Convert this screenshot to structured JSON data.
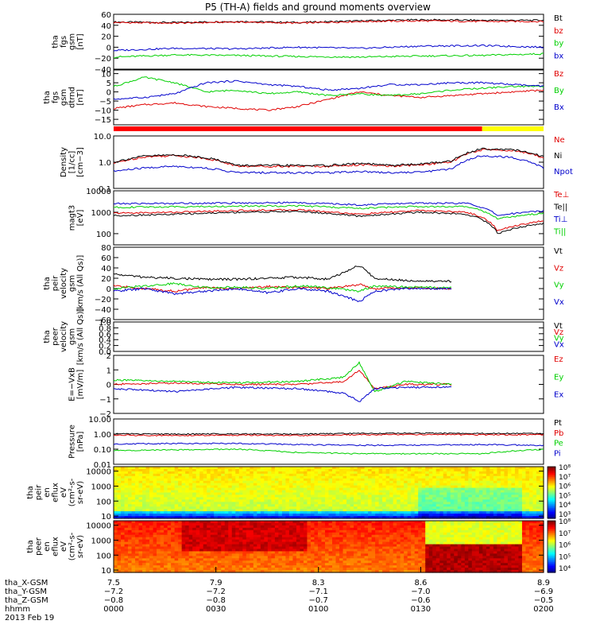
{
  "title": "P5 (TH-A) fields and ground moments overview",
  "colors": {
    "black": "#000000",
    "red": "#e00000",
    "green": "#00d000",
    "blue": "#0000cc",
    "bar_red": "#ff0000",
    "bar_yellow": "#ffff00"
  },
  "chart_data": [
    {
      "type": "line",
      "ylabel": [
        "tha",
        "fgs",
        "gsm",
        "[nT]"
      ],
      "ylim": [
        -40,
        60
      ],
      "scale": "linear",
      "yticks": [
        "60",
        "40",
        "20",
        "0",
        "−20",
        "−40"
      ],
      "legend": [
        {
          "label": "Bt",
          "color": "#000000"
        },
        {
          "label": "bz",
          "color": "#e00000"
        },
        {
          "label": "by",
          "color": "#00d000"
        },
        {
          "label": "bx",
          "color": "#0000cc"
        }
      ],
      "series": [
        {
          "name": "Bt",
          "color": "#000000",
          "x": [
            7.5,
            7.7,
            7.9,
            8.1,
            8.3,
            8.5,
            8.7,
            8.9
          ],
          "y": [
            46,
            45,
            47,
            45,
            48,
            50,
            49,
            49
          ]
        },
        {
          "name": "bz",
          "color": "#e00000",
          "x": [
            7.5,
            7.7,
            7.9,
            8.1,
            8.3,
            8.5,
            8.7,
            8.9
          ],
          "y": [
            45,
            44,
            46,
            44,
            47,
            48,
            47,
            47
          ]
        },
        {
          "name": "by",
          "color": "#00d000",
          "x": [
            7.5,
            7.7,
            7.9,
            8.1,
            8.3,
            8.5,
            8.7,
            8.9
          ],
          "y": [
            -18,
            -14,
            -15,
            -17,
            -18,
            -16,
            -15,
            -12
          ]
        },
        {
          "name": "bx",
          "color": "#0000cc",
          "x": [
            7.5,
            7.7,
            7.9,
            8.1,
            8.3,
            8.5,
            8.7,
            8.9
          ],
          "y": [
            -6,
            -2,
            -3,
            0,
            -2,
            2,
            3,
            0
          ]
        }
      ]
    },
    {
      "type": "line",
      "ylabel": [
        "tha",
        "fgs",
        "gsm",
        "dtrnd",
        "[nT]"
      ],
      "ylim": [
        -18,
        12
      ],
      "scale": "linear",
      "yticks": [
        "10",
        "5",
        "0",
        "−5",
        "−10",
        "−15"
      ],
      "legend": [
        {
          "label": "Bz",
          "color": "#e00000"
        },
        {
          "label": "By",
          "color": "#00d000"
        },
        {
          "label": "Bx",
          "color": "#0000cc"
        }
      ],
      "series": [
        {
          "name": "Bz",
          "color": "#e00000",
          "x": [
            7.5,
            7.6,
            7.7,
            7.8,
            7.9,
            8.0,
            8.1,
            8.2,
            8.3,
            8.4,
            8.5,
            8.6,
            8.7,
            8.8,
            8.9
          ],
          "y": [
            -9,
            -7,
            -6,
            -8,
            -9,
            -10,
            -8,
            -4,
            0,
            -2,
            -3,
            -2,
            -1,
            0,
            1
          ]
        },
        {
          "name": "By",
          "color": "#00d000",
          "x": [
            7.5,
            7.6,
            7.7,
            7.8,
            7.9,
            8.0,
            8.1,
            8.2,
            8.3,
            8.4,
            8.5,
            8.6,
            8.7,
            8.8,
            8.9
          ],
          "y": [
            3,
            8,
            5,
            0,
            1,
            -1,
            0,
            -2,
            -1,
            -2,
            -1,
            1,
            2,
            3,
            3
          ]
        },
        {
          "name": "Bx",
          "color": "#0000cc",
          "x": [
            7.5,
            7.6,
            7.7,
            7.8,
            7.9,
            8.0,
            8.1,
            8.2,
            8.3,
            8.4,
            8.5,
            8.6,
            8.7,
            8.8,
            8.9
          ],
          "y": [
            -4,
            -3,
            -1,
            5,
            6,
            4,
            3,
            1,
            2,
            4,
            4,
            5,
            5,
            4,
            3
          ]
        }
      ]
    },
    {
      "type": "line",
      "ylabel": [
        "Density",
        "[1/cc]",
        "[cm−3]"
      ],
      "ylim": [
        0.1,
        10
      ],
      "scale": "log",
      "yticks": [
        "10.0",
        "1.0",
        "0.1"
      ],
      "legend": [
        {
          "label": "Ne",
          "color": "#e00000"
        },
        {
          "label": "Ni",
          "color": "#000000"
        },
        {
          "label": "Npot",
          "color": "#0000cc"
        }
      ],
      "series": [
        {
          "name": "Ne",
          "color": "#e00000",
          "x": [
            7.5,
            7.6,
            7.7,
            7.8,
            7.9,
            8.0,
            8.1,
            8.2,
            8.3,
            8.4,
            8.5,
            8.6,
            8.7,
            8.8,
            8.9
          ],
          "y": [
            0.9,
            1.6,
            1.8,
            1.4,
            0.7,
            0.7,
            0.7,
            0.7,
            0.8,
            0.7,
            0.8,
            1.0,
            3.0,
            2.8,
            1.5
          ]
        },
        {
          "name": "Ni",
          "color": "#000000",
          "x": [
            7.5,
            7.6,
            7.7,
            7.8,
            7.9,
            8.0,
            8.1,
            8.2,
            8.3,
            8.4,
            8.5,
            8.6,
            8.7,
            8.8,
            8.9
          ],
          "y": [
            1.0,
            1.7,
            1.9,
            1.5,
            0.75,
            0.75,
            0.75,
            0.75,
            0.9,
            0.75,
            0.85,
            1.1,
            3.3,
            3.0,
            1.6
          ]
        },
        {
          "name": "Npot",
          "color": "#0000cc",
          "x": [
            7.5,
            7.6,
            7.7,
            7.8,
            7.9,
            8.0,
            8.1,
            8.2,
            8.3,
            8.4,
            8.5,
            8.6,
            8.7,
            8.8,
            8.9
          ],
          "y": [
            0.45,
            0.6,
            0.7,
            0.6,
            0.4,
            0.4,
            0.4,
            0.4,
            0.45,
            0.4,
            0.42,
            0.55,
            1.8,
            1.5,
            0.6
          ]
        }
      ]
    },
    {
      "type": "line",
      "ylabel": [
        "magt3",
        "[eV]"
      ],
      "ylim": [
        30,
        10000
      ],
      "scale": "log",
      "yticks": [
        "10000",
        "1000",
        "100"
      ],
      "legend": [
        {
          "label": "Te⊥",
          "color": "#e00000"
        },
        {
          "label": "Te||",
          "color": "#000000"
        },
        {
          "label": "Ti⊥",
          "color": "#0000cc"
        },
        {
          "label": "Ti||",
          "color": "#00d000"
        }
      ],
      "series": [
        {
          "name": "Te⊥",
          "color": "#e00000",
          "x": [
            7.5,
            7.7,
            7.9,
            8.1,
            8.3,
            8.5,
            8.65,
            8.75,
            8.9
          ],
          "y": [
            900,
            1000,
            1200,
            1300,
            800,
            1200,
            1000,
            130,
            400
          ]
        },
        {
          "name": "Te||",
          "color": "#000000",
          "x": [
            7.5,
            7.7,
            7.9,
            8.1,
            8.3,
            8.5,
            8.65,
            8.75,
            8.9
          ],
          "y": [
            700,
            800,
            1000,
            1100,
            650,
            1000,
            800,
            100,
            300
          ]
        },
        {
          "name": "Ti⊥",
          "color": "#0000cc",
          "x": [
            7.5,
            7.7,
            7.9,
            8.1,
            8.3,
            8.5,
            8.65,
            8.75,
            8.9
          ],
          "y": [
            2500,
            2600,
            2700,
            2800,
            2200,
            2700,
            2600,
            700,
            1200
          ]
        },
        {
          "name": "Ti||",
          "color": "#00d000",
          "x": [
            7.5,
            7.7,
            7.9,
            8.1,
            8.3,
            8.5,
            8.65,
            8.75,
            8.9
          ],
          "y": [
            1700,
            1800,
            1900,
            2000,
            1500,
            1900,
            1800,
            500,
            900
          ]
        }
      ]
    },
    {
      "type": "line",
      "ylabel": [
        "tha",
        "peir",
        "velocity",
        "gsm",
        "[km/s (All Qs)]"
      ],
      "ylim": [
        -60,
        80
      ],
      "scale": "linear",
      "yticks": [
        "80",
        "60",
        "40",
        "20",
        "0",
        "−20",
        "−40",
        "−60"
      ],
      "legend": [
        {
          "label": "Vt",
          "color": "#000000"
        },
        {
          "label": "Vz",
          "color": "#e00000"
        },
        {
          "label": "Vy",
          "color": "#00d000"
        },
        {
          "label": "Vx",
          "color": "#0000cc"
        }
      ],
      "series": [
        {
          "name": "Vt",
          "color": "#000000",
          "x": [
            7.5,
            7.6,
            7.7,
            7.8,
            7.9,
            8.0,
            8.1,
            8.2,
            8.3,
            8.35,
            8.45,
            8.6
          ],
          "y": [
            28,
            22,
            20,
            18,
            18,
            20,
            22,
            18,
            45,
            20,
            16,
            14
          ]
        },
        {
          "name": "Vz",
          "color": "#e00000",
          "x": [
            7.5,
            7.6,
            7.7,
            7.8,
            7.9,
            8.0,
            8.1,
            8.2,
            8.3,
            8.35,
            8.45,
            8.6
          ],
          "y": [
            5,
            0,
            -5,
            2,
            0,
            4,
            2,
            0,
            8,
            0,
            2,
            0
          ]
        },
        {
          "name": "Vy",
          "color": "#00d000",
          "x": [
            7.5,
            7.6,
            7.7,
            7.8,
            7.9,
            8.0,
            8.1,
            8.2,
            8.3,
            8.35,
            8.45,
            8.6
          ],
          "y": [
            0,
            5,
            10,
            2,
            3,
            0,
            5,
            2,
            -5,
            5,
            3,
            2
          ]
        },
        {
          "name": "Vx",
          "color": "#0000cc",
          "x": [
            7.5,
            7.6,
            7.7,
            7.8,
            7.9,
            8.0,
            8.1,
            8.2,
            8.3,
            8.35,
            8.45,
            8.6
          ],
          "y": [
            -5,
            0,
            -10,
            -5,
            0,
            -8,
            0,
            -5,
            -25,
            -5,
            0,
            0
          ]
        }
      ]
    },
    {
      "type": "line",
      "ylabel": [
        "tha",
        "peer",
        "velocity",
        "gsm",
        "[km/s (All Qs)]"
      ],
      "ylim": [
        0.0,
        1.0
      ],
      "scale": "linear",
      "yticks": [
        "1.0",
        "0.8",
        "0.6",
        "0.4",
        "0.2",
        "0.0"
      ],
      "legend": [
        {
          "label": "Vt",
          "color": "#000000"
        },
        {
          "label": "Vz",
          "color": "#e00000"
        },
        {
          "label": "Vy",
          "color": "#00d000"
        },
        {
          "label": "Vx",
          "color": "#0000cc"
        }
      ],
      "series": []
    },
    {
      "type": "line",
      "ylabel": [
        "E=−VxB",
        "[mV/m]"
      ],
      "ylim": [
        -2,
        2
      ],
      "scale": "linear",
      "yticks": [
        "2",
        "1",
        "0",
        "−1",
        "−2"
      ],
      "legend": [
        {
          "label": "Ez",
          "color": "#e00000"
        },
        {
          "label": "Ey",
          "color": "#00d000"
        },
        {
          "label": "Ex",
          "color": "#0000cc"
        }
      ],
      "series": [
        {
          "name": "Ez",
          "color": "#e00000",
          "x": [
            7.5,
            7.7,
            7.9,
            8.1,
            8.25,
            8.3,
            8.35,
            8.45,
            8.6
          ],
          "y": [
            0,
            0.1,
            0,
            0,
            0.2,
            1.0,
            -0.3,
            0,
            0
          ]
        },
        {
          "name": "Ey",
          "color": "#00d000",
          "x": [
            7.5,
            7.7,
            7.9,
            8.1,
            8.25,
            8.3,
            8.35,
            8.45,
            8.6
          ],
          "y": [
            0.3,
            0.2,
            0.1,
            0.2,
            0.5,
            1.5,
            -0.5,
            0.2,
            0
          ]
        },
        {
          "name": "Ex",
          "color": "#0000cc",
          "x": [
            7.5,
            7.7,
            7.9,
            8.1,
            8.25,
            8.3,
            8.35,
            8.45,
            8.6
          ],
          "y": [
            -0.3,
            -0.5,
            -0.2,
            -0.3,
            -0.6,
            -1.2,
            -0.3,
            -0.2,
            -0.2
          ]
        }
      ]
    },
    {
      "type": "line",
      "ylabel": [
        "Pressure",
        "[nPa]"
      ],
      "ylim": [
        0.01,
        10
      ],
      "scale": "log",
      "yticks": [
        "10.00",
        "1.00",
        "0.10",
        "0.01"
      ],
      "legend": [
        {
          "label": "Pt",
          "color": "#000000"
        },
        {
          "label": "Pb",
          "color": "#e00000"
        },
        {
          "label": "Pe",
          "color": "#00d000"
        },
        {
          "label": "Pi",
          "color": "#0000cc"
        }
      ],
      "series": [
        {
          "name": "Pt",
          "color": "#000000",
          "x": [
            7.5,
            7.7,
            7.9,
            8.1,
            8.3,
            8.5,
            8.7,
            8.9
          ],
          "y": [
            1.05,
            1.0,
            1.05,
            1.0,
            1.1,
            1.15,
            1.1,
            1.1
          ]
        },
        {
          "name": "Pb",
          "color": "#e00000",
          "x": [
            7.5,
            7.7,
            7.9,
            8.1,
            8.3,
            8.5,
            8.7,
            8.9
          ],
          "y": [
            0.85,
            0.8,
            0.85,
            0.8,
            0.9,
            0.95,
            0.9,
            0.9
          ]
        },
        {
          "name": "Pe",
          "color": "#00d000",
          "x": [
            7.5,
            7.7,
            7.9,
            8.1,
            8.3,
            8.5,
            8.7,
            8.9
          ],
          "y": [
            0.08,
            0.09,
            0.1,
            0.06,
            0.05,
            0.05,
            0.05,
            0.1
          ]
        },
        {
          "name": "Pi",
          "color": "#0000cc",
          "x": [
            7.5,
            7.7,
            7.9,
            8.1,
            8.3,
            8.5,
            8.7,
            8.9
          ],
          "y": [
            0.22,
            0.24,
            0.24,
            0.2,
            0.18,
            0.19,
            0.2,
            0.18
          ]
        }
      ]
    },
    {
      "type": "heatmap",
      "ylabel": [
        "tha",
        "peir",
        "en",
        "eflux",
        "eV",
        "(cm²-s-",
        "sr-eV)"
      ],
      "ylim": [
        7,
        20000
      ],
      "scale": "log",
      "yticks": [
        "10000",
        "1000",
        "100",
        "10"
      ],
      "colorbar": {
        "min_exp": 3,
        "max_exp": 8,
        "labels": [
          "10⁸",
          "10⁷",
          "10⁶",
          "10⁵",
          "10⁴",
          "10³"
        ]
      }
    },
    {
      "type": "heatmap",
      "ylabel": [
        "tha",
        "peer",
        "en",
        "eflux",
        "eV",
        "(cm²-s-",
        "sr-eV)"
      ],
      "ylim": [
        7,
        20000
      ],
      "scale": "log",
      "yticks": [
        "10000",
        "1000",
        "100",
        "10"
      ],
      "colorbar": {
        "min_exp": 3.5,
        "max_exp": 8,
        "labels": [
          "10⁸",
          "10⁷",
          "10⁶",
          "10⁵",
          "10⁴"
        ]
      }
    }
  ],
  "bar": {
    "transition_x": 8.7
  },
  "xaxis": {
    "xlim": [
      7.5,
      8.9
    ],
    "ticks": [
      7.5,
      7.833,
      8.167,
      8.5,
      8.9
    ],
    "rows": [
      {
        "label": "tha_X-GSM",
        "values": [
          "7.5",
          "7.9",
          "8.3",
          "8.6",
          "8.9"
        ]
      },
      {
        "label": "tha_Y-GSM",
        "values": [
          "−7.2",
          "−7.2",
          "−7.1",
          "−7.0",
          "−6.9"
        ]
      },
      {
        "label": "tha_Z-GSM",
        "values": [
          "−0.8",
          "−0.8",
          "−0.7",
          "−0.6",
          "−0.5"
        ]
      },
      {
        "label": "hhmm",
        "values": [
          "0000",
          "0030",
          "0100",
          "0130",
          "0200"
        ]
      }
    ],
    "date": "2013 Feb 19"
  }
}
